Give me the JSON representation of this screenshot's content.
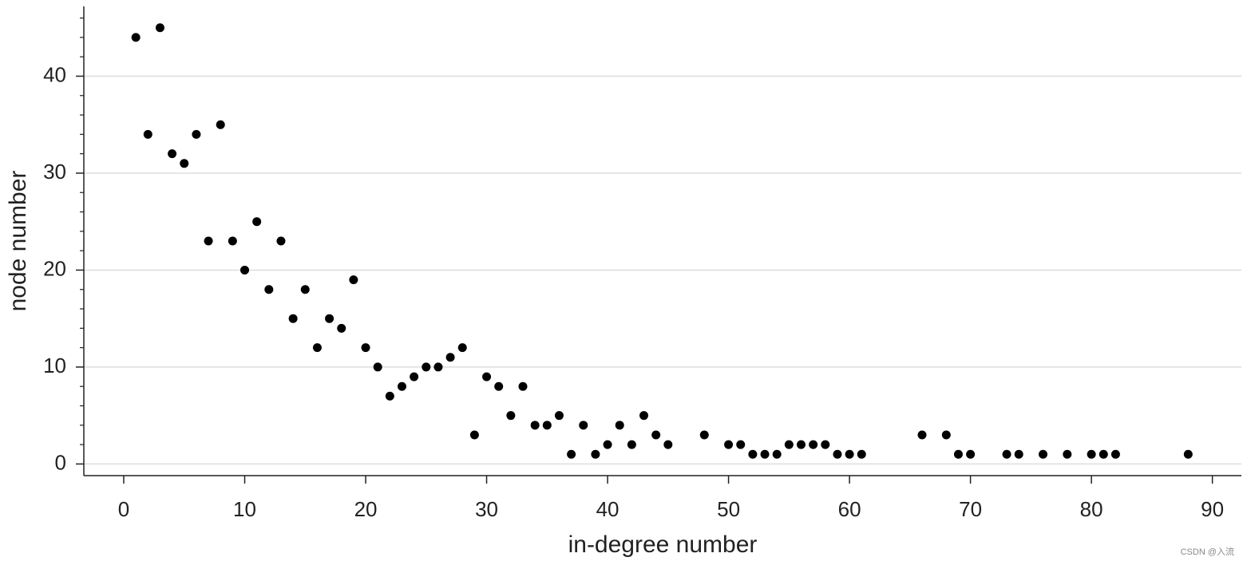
{
  "chart_data": {
    "type": "scatter",
    "x_label": "in-degree number",
    "y_label": "node number",
    "x": [
      1,
      2,
      3,
      4,
      5,
      6,
      7,
      8,
      9,
      10,
      11,
      12,
      13,
      14,
      15,
      16,
      17,
      18,
      19,
      20,
      21,
      22,
      23,
      24,
      25,
      26,
      27,
      28,
      29,
      30,
      31,
      32,
      33,
      34,
      35,
      36,
      37,
      38,
      39,
      40,
      41,
      42,
      43,
      44,
      45,
      48,
      50,
      51,
      52,
      53,
      54,
      55,
      56,
      57,
      58,
      59,
      60,
      61,
      66,
      68,
      69,
      70,
      73,
      74,
      76,
      78,
      80,
      81,
      82,
      88
    ],
    "values": [
      44,
      34,
      45,
      32,
      31,
      34,
      23,
      35,
      23,
      20,
      25,
      18,
      23,
      15,
      18,
      12,
      15,
      14,
      19,
      12,
      10,
      7,
      8,
      9,
      10,
      10,
      11,
      12,
      3,
      9,
      8,
      5,
      8,
      4,
      4,
      5,
      1,
      4,
      1,
      2,
      4,
      2,
      5,
      3,
      2,
      3,
      2,
      2,
      1,
      1,
      1,
      2,
      2,
      2,
      2,
      1,
      1,
      1,
      3,
      3,
      1,
      1,
      1,
      1,
      1,
      1,
      1,
      1,
      1,
      1
    ],
    "color": "#000000",
    "xlim": [
      -3.3,
      92.4
    ],
    "ylim": [
      -1.2,
      47.2
    ],
    "xticks": [
      0,
      10,
      20,
      30,
      40,
      50,
      60,
      70,
      80,
      90
    ],
    "yticks": [
      0,
      10,
      20,
      30,
      40
    ],
    "yminorticks": [
      2,
      4,
      6,
      8,
      12,
      14,
      16,
      18,
      22,
      24,
      26,
      28,
      32,
      34,
      36,
      38,
      42,
      44,
      46
    ],
    "grid": true,
    "watermark": "CSDN @入流"
  }
}
